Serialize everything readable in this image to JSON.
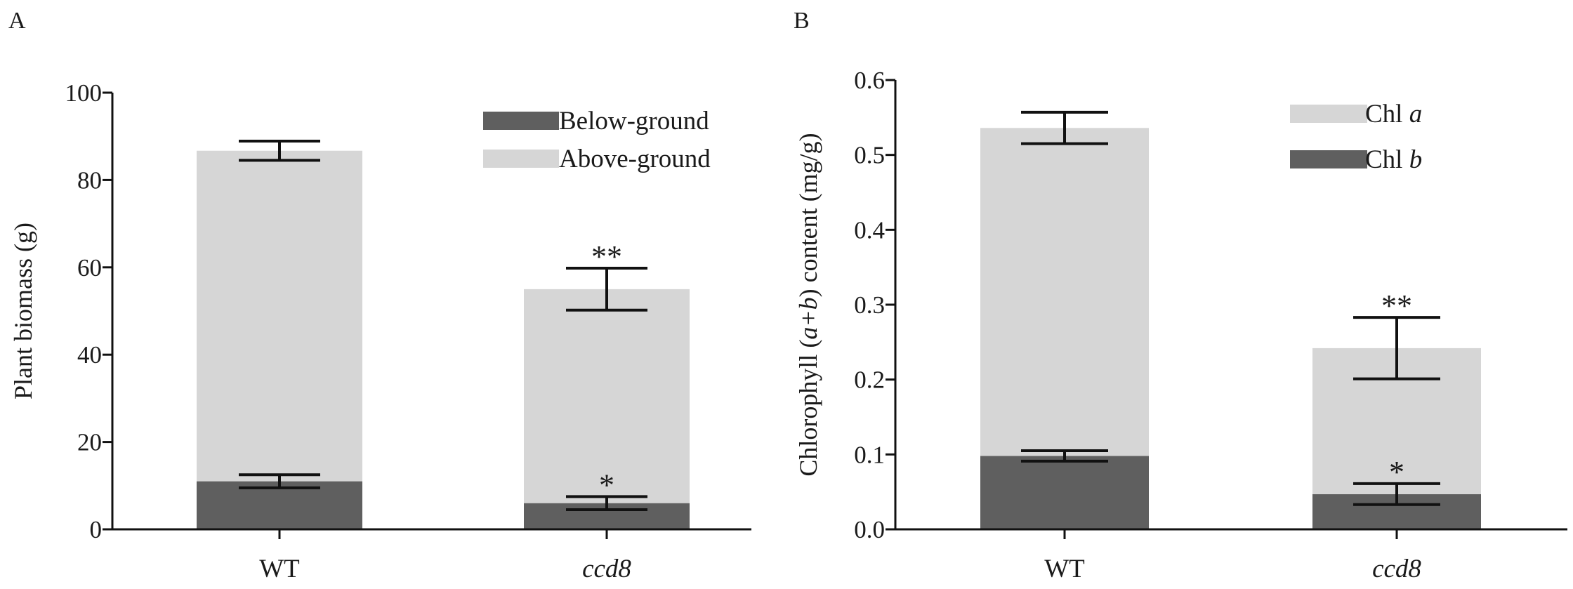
{
  "chart_data": [
    {
      "panel": "A",
      "type": "bar",
      "stacked": true,
      "categories": [
        "WT",
        "ccd8"
      ],
      "categories_italic": [
        false,
        true
      ],
      "ylabel": "Plant biomass (g)",
      "xlabel": "",
      "ylim": [
        0,
        100
      ],
      "yticks": [
        0,
        20,
        40,
        60,
        80,
        100
      ],
      "ytick_labels": [
        "0",
        "20",
        "40",
        "60",
        "80",
        "100"
      ],
      "legend_position": "top-right",
      "series": [
        {
          "name": "Below-ground",
          "legend_order": 0,
          "color": "#5f5f5f",
          "values": [
            11,
            6
          ],
          "errors": [
            1.5,
            1.5
          ],
          "significance": [
            "",
            "*"
          ]
        },
        {
          "name": "Above-ground",
          "legend_order": 1,
          "color": "#d6d6d6",
          "values": [
            75.7,
            49
          ],
          "errors": [
            2.2,
            4.8
          ],
          "significance": [
            "",
            "**"
          ]
        }
      ]
    },
    {
      "panel": "B",
      "type": "bar",
      "stacked": true,
      "categories": [
        "WT",
        "ccd8"
      ],
      "categories_italic": [
        false,
        true
      ],
      "ylabel_parts": [
        {
          "text": "Chlorophyll (",
          "italic": false
        },
        {
          "text": "a+b",
          "italic": true
        },
        {
          "text": ") content (mg/g)",
          "italic": false
        }
      ],
      "xlabel": "",
      "ylim": [
        0,
        0.6
      ],
      "yticks": [
        0,
        0.1,
        0.2,
        0.3,
        0.4,
        0.5,
        0.6
      ],
      "ytick_labels": [
        "0.0",
        "0.1",
        "0.2",
        "0.3",
        "0.4",
        "0.5",
        "0.6"
      ],
      "legend_position": "top-right",
      "series": [
        {
          "name": "Chl b",
          "legend_prefix": "Chl ",
          "legend_italic": "b",
          "legend_order": 1,
          "color": "#5f5f5f",
          "values": [
            0.098,
            0.047
          ],
          "errors": [
            0.007,
            0.014
          ],
          "significance": [
            "",
            "*"
          ]
        },
        {
          "name": "Chl a",
          "legend_prefix": "Chl ",
          "legend_italic": "a",
          "legend_order": 0,
          "color": "#d6d6d6",
          "values": [
            0.438,
            0.195
          ],
          "errors": [
            0.021,
            0.041
          ],
          "significance": [
            "",
            "**"
          ]
        }
      ]
    }
  ]
}
